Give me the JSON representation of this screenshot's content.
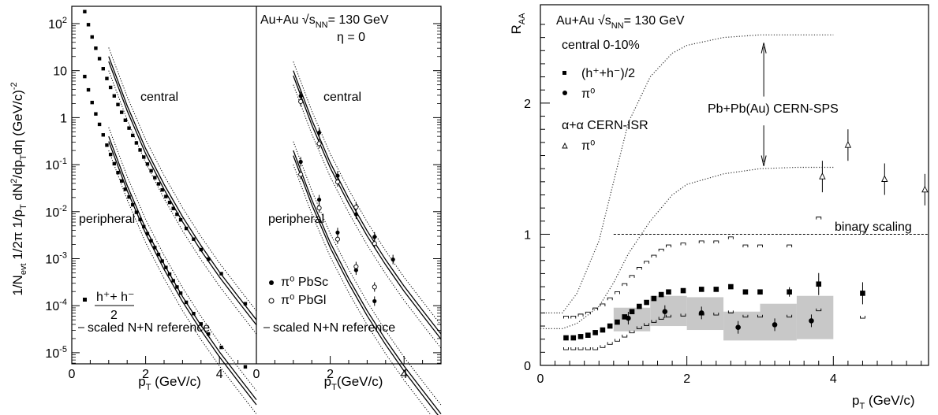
{
  "left": {
    "ylabel": "1/N_evt  1/2π 1/p_T dN²/dp_T dη (GeV/c)⁻²",
    "y_ticks": [
      "10²",
      "10",
      "1",
      "10⁻¹",
      "10⁻²",
      "10⁻³",
      "10⁻⁴",
      "10⁻⁵"
    ],
    "y_exp": [
      2,
      1,
      0,
      -1,
      -2,
      -3,
      -4,
      -5
    ],
    "panel_a": {
      "xlabel": "p_T (GeV/c)",
      "x_ticks": [
        "0",
        "2",
        "4"
      ],
      "label_central": "central",
      "label_peripheral": "peripheral",
      "legend_hh_num": "h⁺+ h⁻",
      "legend_hh_den": "2",
      "legend_ref": "scaled N+N reference"
    },
    "panel_b": {
      "xlabel": "p_T(GeV/c)",
      "x_ticks": [
        "0",
        "2",
        "4"
      ],
      "system_prefix": "Au+Au √s",
      "system_sub": "NN",
      "system_suffix": "= 130 GeV",
      "eta": "η = 0",
      "label_central": "central",
      "label_peripheral": "peripheral",
      "legend_pbsc": "π⁰  PbSc",
      "legend_pbgl": "π⁰  PbGl",
      "legend_ref": "scaled N+N reference"
    }
  },
  "right": {
    "ylabel": "R_AA",
    "xlabel": "p_T (GeV/c)",
    "x_ticks": [
      "0",
      "2",
      "4"
    ],
    "y_ticks": [
      "0",
      "1",
      "2"
    ],
    "system_prefix": "Au+Au √s",
    "system_sub": "NN",
    "system_suffix": "= 130 GeV",
    "centrality": "central 0-10%",
    "legend_hh": "(h⁺+h⁻)/2",
    "legend_pi0": "π⁰",
    "isr_label": "α+α CERN-ISR",
    "isr_pi0": "π⁰",
    "sps_label": "Pb+Pb(Au) CERN-SPS",
    "binary_label": "binary scaling"
  },
  "chart_data": [
    {
      "type": "scatter",
      "panel": "left-a",
      "log_y": true,
      "xlim": [
        0,
        5
      ],
      "ylim": [
        2e-06,
        500
      ],
      "series": [
        {
          "name": "h⁺+h⁻ central",
          "marker": "square",
          "x": [
            0.35,
            0.45,
            0.55,
            0.65,
            0.75,
            0.85,
            0.95,
            1.05,
            1.15,
            1.25,
            1.35,
            1.45,
            1.55,
            1.65,
            1.75,
            1.85,
            1.95,
            2.05,
            2.15,
            2.25,
            2.35,
            2.45,
            2.55,
            2.65,
            2.75,
            2.85,
            2.95,
            3.1,
            3.3,
            3.5,
            3.7,
            4.05,
            4.7
          ],
          "y": [
            180,
            95,
            52,
            30,
            18,
            11,
            6.8,
            4.4,
            2.9,
            1.9,
            1.3,
            0.88,
            0.6,
            0.42,
            0.29,
            0.205,
            0.145,
            0.103,
            0.074,
            0.053,
            0.039,
            0.029,
            0.021,
            0.0157,
            0.0117,
            0.0088,
            0.0067,
            0.0044,
            0.0026,
            0.00156,
            0.00098,
            0.00048,
            0.00011
          ]
        },
        {
          "name": "h⁺+h⁻ peripheral",
          "marker": "square",
          "x": [
            0.35,
            0.45,
            0.55,
            0.65,
            0.75,
            0.85,
            0.95,
            1.05,
            1.15,
            1.25,
            1.35,
            1.45,
            1.55,
            1.65,
            1.75,
            1.85,
            1.95,
            2.05,
            2.15,
            2.25,
            2.35,
            2.45,
            2.55,
            2.65,
            2.75,
            2.85,
            2.95,
            3.1,
            3.3,
            3.5,
            3.7,
            4.05,
            4.7
          ],
          "y": [
            7.5,
            3.9,
            2.1,
            1.2,
            0.72,
            0.43,
            0.26,
            0.165,
            0.105,
            0.068,
            0.045,
            0.03,
            0.0205,
            0.014,
            0.0097,
            0.0068,
            0.0048,
            0.0034,
            0.0024,
            0.00172,
            0.00123,
            0.00089,
            0.00065,
            0.00047,
            0.00034,
            0.00025,
            0.000185,
            0.000118,
            6.8e-05,
            4.1e-05,
            2.5e-05,
            1.3e-05,
            5e-06
          ]
        }
      ],
      "reference_curves": [
        {
          "name": "central",
          "x": [
            1.0,
            1.5,
            2.0,
            2.5,
            3.0,
            3.5,
            4.0,
            4.5,
            5.0
          ],
          "y": [
            20,
            1.8,
            0.22,
            0.038,
            0.0078,
            0.0019,
            0.00052,
            0.00016,
            5e-05
          ]
        },
        {
          "name": "peripheral",
          "x": [
            1.0,
            1.5,
            2.0,
            2.5,
            3.0,
            3.5,
            4.0,
            4.5,
            5.0
          ],
          "y": [
            0.4,
            0.036,
            0.0044,
            0.00076,
            0.000156,
            3.8e-05,
            1.04e-05,
            3.2e-06,
            1e-06
          ]
        }
      ]
    },
    {
      "type": "scatter",
      "panel": "left-b",
      "log_y": true,
      "xlim": [
        0,
        5
      ],
      "ylim": [
        2e-06,
        500
      ],
      "series": [
        {
          "name": "π⁰ PbSc central",
          "marker": "filled-circle",
          "x": [
            1.2,
            1.7,
            2.2,
            2.7,
            3.2,
            3.7
          ],
          "y": [
            2.9,
            0.48,
            0.058,
            0.0088,
            0.0029,
            0.00096
          ]
        },
        {
          "name": "π⁰ PbGl central",
          "marker": "open-circle",
          "x": [
            1.2,
            1.7,
            2.2,
            2.7,
            3.2
          ],
          "y": [
            2.2,
            0.28,
            0.043,
            0.0125,
            0.0021
          ]
        },
        {
          "name": "π⁰ PbSc peripheral",
          "marker": "filled-circle",
          "x": [
            1.2,
            1.7,
            2.2,
            2.7,
            3.2
          ],
          "y": [
            0.115,
            0.018,
            0.0036,
            0.00057,
            0.000125
          ]
        },
        {
          "name": "π⁰ PbGl peripheral",
          "marker": "open-circle",
          "x": [
            1.2,
            1.7,
            2.2,
            2.7,
            3.2
          ],
          "y": [
            0.062,
            0.012,
            0.0026,
            0.00068,
            0.00025
          ]
        }
      ],
      "reference_curves": [
        {
          "name": "central",
          "x": [
            1.0,
            1.5,
            2.0,
            2.5,
            3.0,
            3.5,
            4.0,
            4.5,
            5.0
          ],
          "y": [
            10,
            0.9,
            0.11,
            0.019,
            0.0039,
            0.00095,
            0.00026,
            8e-05,
            2.5e-05
          ]
        },
        {
          "name": "peripheral",
          "x": [
            1.0,
            1.5,
            2.0,
            2.5,
            3.0,
            3.5,
            4.0,
            4.5,
            5.0
          ],
          "y": [
            0.2,
            0.018,
            0.0022,
            0.00038,
            7.8e-05,
            1.9e-05,
            5.2e-06,
            1.6e-06,
            5e-07
          ]
        }
      ]
    },
    {
      "type": "scatter",
      "panel": "right",
      "xlim": [
        0,
        5.3
      ],
      "ylim": [
        0,
        2.75
      ],
      "series": [
        {
          "name": "(h⁺+h⁻)/2",
          "marker": "square",
          "x": [
            0.35,
            0.45,
            0.55,
            0.65,
            0.75,
            0.85,
            0.95,
            1.05,
            1.15,
            1.25,
            1.35,
            1.45,
            1.55,
            1.65,
            1.75,
            1.95,
            2.2,
            2.4,
            2.6,
            2.8,
            3.0,
            3.4,
            3.8,
            4.4
          ],
          "y": [
            0.21,
            0.21,
            0.22,
            0.23,
            0.25,
            0.27,
            0.3,
            0.33,
            0.37,
            0.41,
            0.45,
            0.48,
            0.51,
            0.54,
            0.56,
            0.57,
            0.58,
            0.58,
            0.6,
            0.56,
            0.56,
            0.56,
            0.62,
            0.55
          ]
        },
        {
          "name": "π⁰",
          "marker": "filled-circle",
          "x": [
            1.2,
            1.7,
            2.2,
            2.7,
            3.2,
            3.7
          ],
          "y": [
            0.36,
            0.41,
            0.4,
            0.29,
            0.31,
            0.34
          ]
        },
        {
          "name": "α+α CERN-ISR π⁰",
          "marker": "open-triangle",
          "x": [
            3.85,
            4.2,
            4.7,
            5.25
          ],
          "y": [
            1.44,
            1.68,
            1.42,
            1.34
          ]
        }
      ],
      "systematic_band": [
        {
          "x0": 1.0,
          "x1": 1.5,
          "lo": 0.26,
          "hi": 0.44
        },
        {
          "x0": 1.5,
          "x1": 2.0,
          "lo": 0.3,
          "hi": 0.53
        },
        {
          "x0": 2.0,
          "x1": 2.5,
          "lo": 0.27,
          "hi": 0.52
        },
        {
          "x0": 2.5,
          "x1": 3.0,
          "lo": 0.19,
          "hi": 0.41
        },
        {
          "x0": 3.0,
          "x1": 3.5,
          "lo": 0.19,
          "hi": 0.47
        },
        {
          "x0": 3.5,
          "x1": 4.0,
          "lo": 0.2,
          "hi": 0.53
        }
      ],
      "sps_band": {
        "x": [
          0.0,
          0.3,
          0.5,
          0.8,
          1.0,
          1.2,
          1.5,
          1.8,
          2.0,
          2.5,
          3.0,
          3.5,
          4.0
        ],
        "upper": [
          0.4,
          0.4,
          0.55,
          0.95,
          1.4,
          1.85,
          2.2,
          2.38,
          2.44,
          2.5,
          2.52,
          2.52,
          2.52
        ],
        "lower": [
          0.28,
          0.28,
          0.32,
          0.45,
          0.63,
          0.85,
          1.1,
          1.3,
          1.38,
          1.46,
          1.5,
          1.51,
          1.51
        ]
      },
      "binary_scaling": 1.0
    }
  ]
}
